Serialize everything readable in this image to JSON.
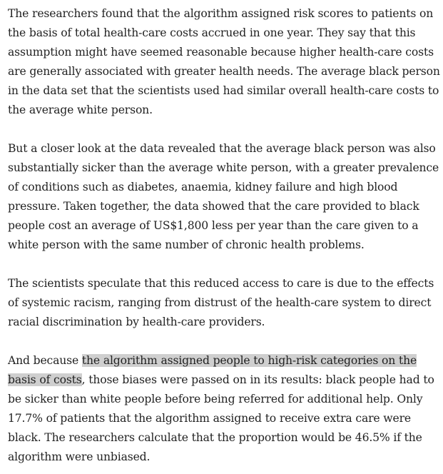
{
  "article": {
    "paragraphs": [
      {
        "text": "The researchers found that the algorithm assigned risk scores to patients on the basis of total health-care costs accrued in one year. They say that this assumption might have seemed reasonable because higher health-care costs are generally associated with greater health needs. The average black person in the data set that the scientists used had similar overall health-care costs to the average white person."
      },
      {
        "text": "But a closer look at the data revealed that the average black person was also substantially sicker than the average white person, with a greater prevalence of conditions such as diabetes, anaemia, kidney failure and high blood pressure. Taken together, the data showed that the care provided to black people cost an average of US$1,800 less per year than the care given to a white person with the same number of chronic health problems."
      },
      {
        "text": "The scientists speculate that this reduced access to care is due to the effects of systemic racism, ranging from distrust of the health-care system to direct racial discrimination by health-care providers."
      },
      {
        "before": "And because ",
        "highlight": "the algorithm assigned people to high-risk categories on the basis of costs",
        "after": ", those biases were passed on in its results: black people had to be sicker than white people before being referred for additional help. Only 17.7% of patients that the algorithm assigned to receive extra care were black. The researchers calculate that the proportion would be 46.5% if the algorithm were unbiased."
      }
    ]
  }
}
